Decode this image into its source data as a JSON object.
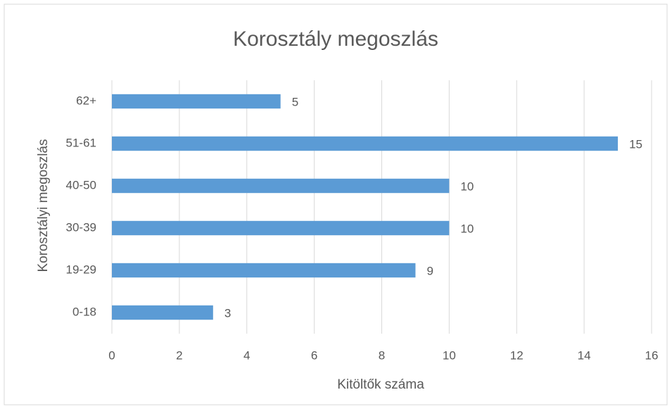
{
  "chart_data": {
    "type": "bar",
    "orientation": "horizontal",
    "title": "Korosztály megoszlás",
    "xlabel": "Kitöltők száma",
    "ylabel": "Korosztályi megoszlás",
    "categories": [
      "0-18",
      "19-29",
      "30-39",
      "40-50",
      "51-61",
      "62+"
    ],
    "values": [
      3,
      9,
      10,
      10,
      15,
      5
    ],
    "color": "#5b9bd5",
    "xlim": [
      0,
      16
    ],
    "xticks": [
      0,
      2,
      4,
      6,
      8,
      10,
      12,
      14,
      16
    ],
    "grid": true
  }
}
